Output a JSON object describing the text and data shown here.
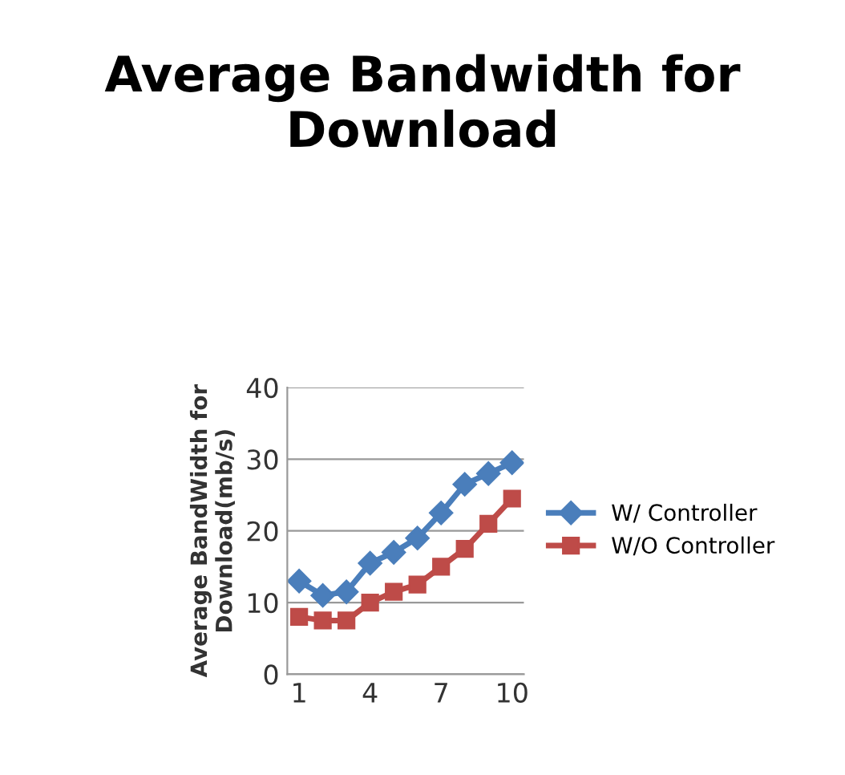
{
  "chart_data": {
    "type": "line",
    "title": "Average Bandwidth for Download",
    "ylabel": "Average BandWidth for Download(mb/s)",
    "categories": [
      "1",
      null,
      null,
      "4",
      null,
      null,
      "7",
      null,
      null,
      "10"
    ],
    "series": [
      {
        "name": "W/ Controller",
        "color": "#4a7ebb",
        "marker": "diamond",
        "values": [
          13,
          11,
          11.5,
          15.5,
          17,
          19,
          22.5,
          26.5,
          28,
          29.5
        ]
      },
      {
        "name": "W/O Controller",
        "color": "#be4b48",
        "marker": "square",
        "values": [
          8,
          7.5,
          7.5,
          10,
          11.5,
          12.5,
          15,
          17.5,
          21,
          24.5
        ]
      }
    ],
    "ylim": [
      0,
      40
    ],
    "yticks": [
      0,
      10,
      20,
      30,
      40
    ],
    "grid": "y",
    "legend": "right"
  }
}
